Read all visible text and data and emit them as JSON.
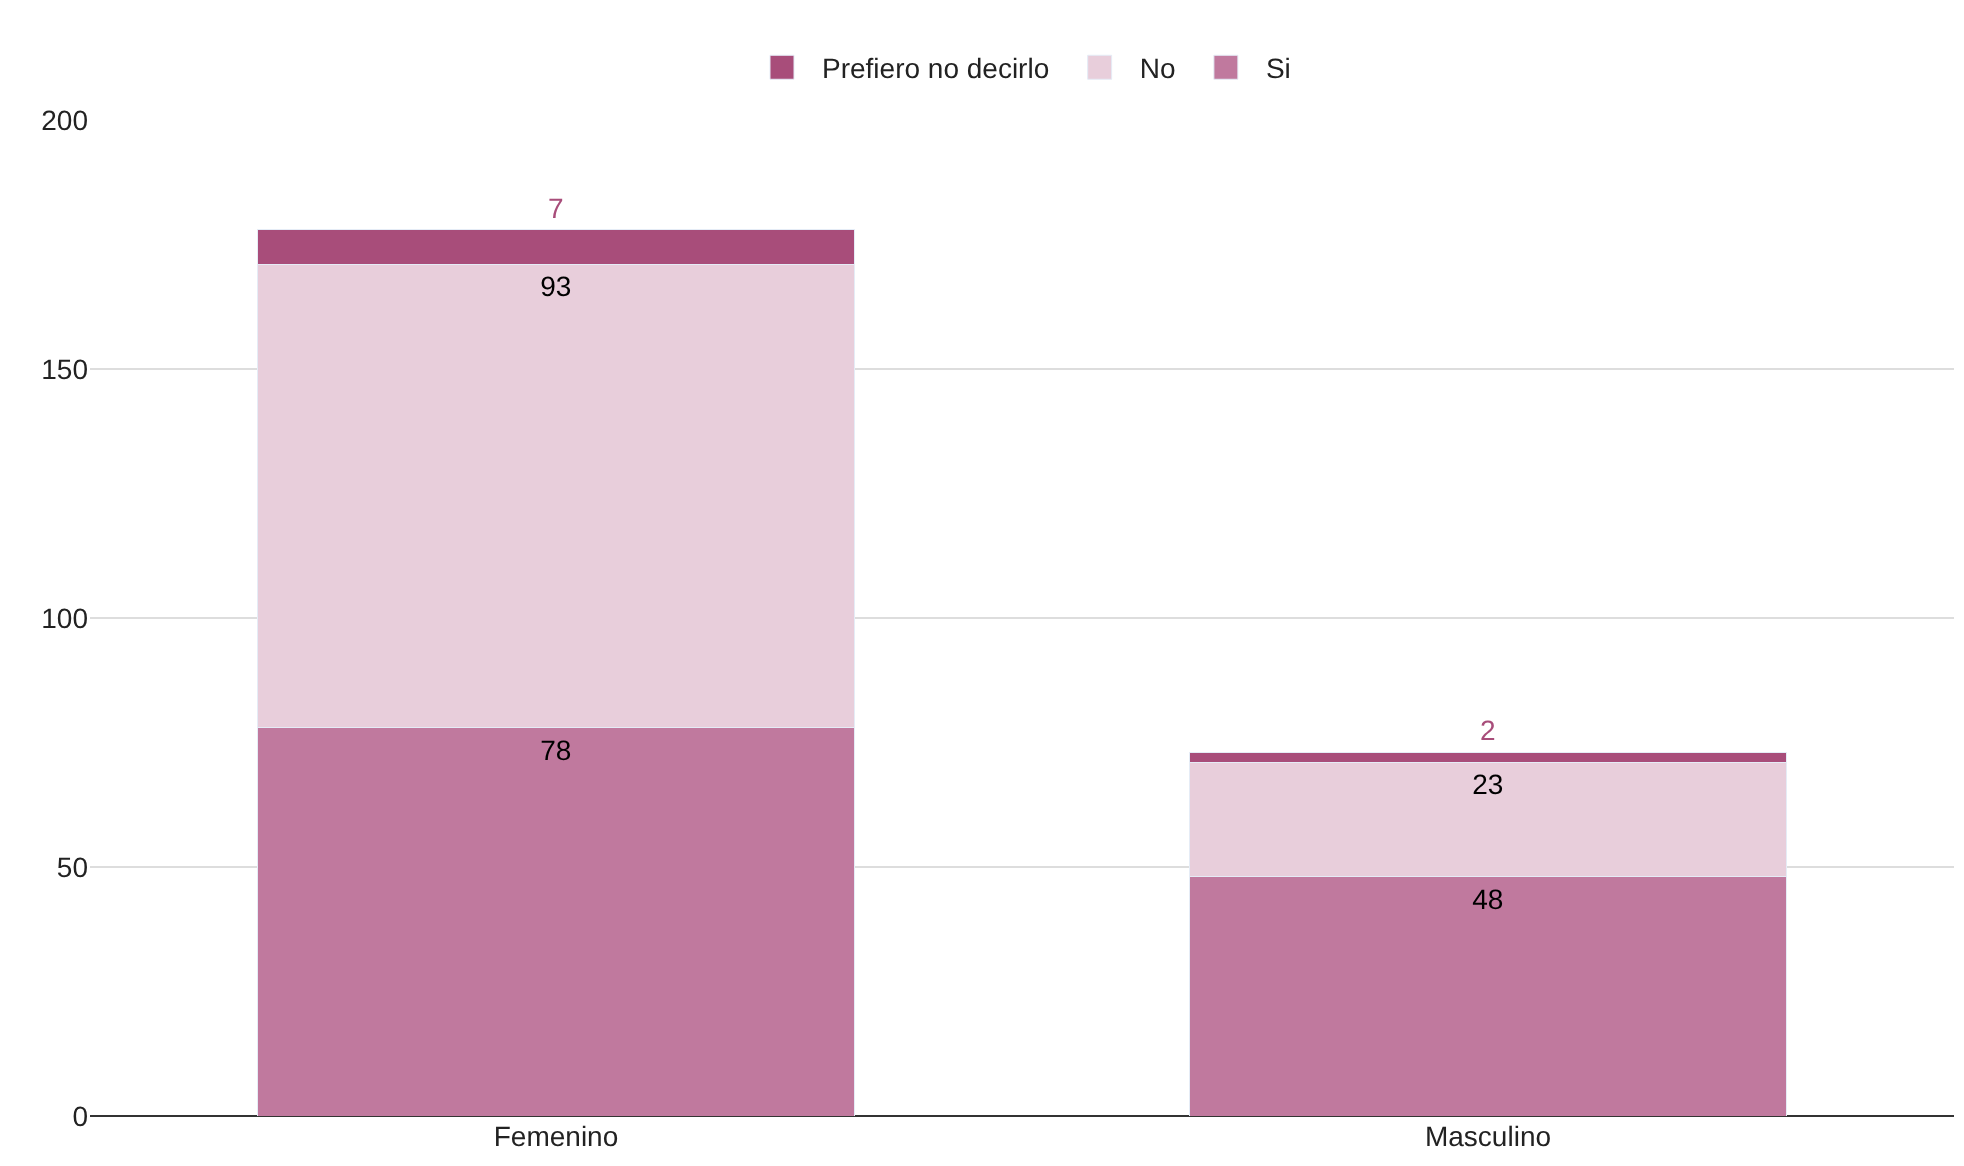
{
  "chart_data": {
    "type": "bar",
    "stacked": true,
    "categories": [
      "Femenino",
      "Masculino"
    ],
    "series": [
      {
        "name": "Si",
        "color": "#c0799e",
        "values": [
          78,
          48
        ]
      },
      {
        "name": "No",
        "color": "#e8cedb",
        "values": [
          93,
          23
        ]
      },
      {
        "name": "Prefiero no decirlo",
        "color": "#a84d7a",
        "values": [
          7,
          2
        ]
      }
    ],
    "ylim": [
      0,
      200
    ],
    "yticks": [
      0,
      50,
      100,
      150,
      200
    ],
    "grid": "y",
    "legend": "top",
    "data_labels": true
  }
}
